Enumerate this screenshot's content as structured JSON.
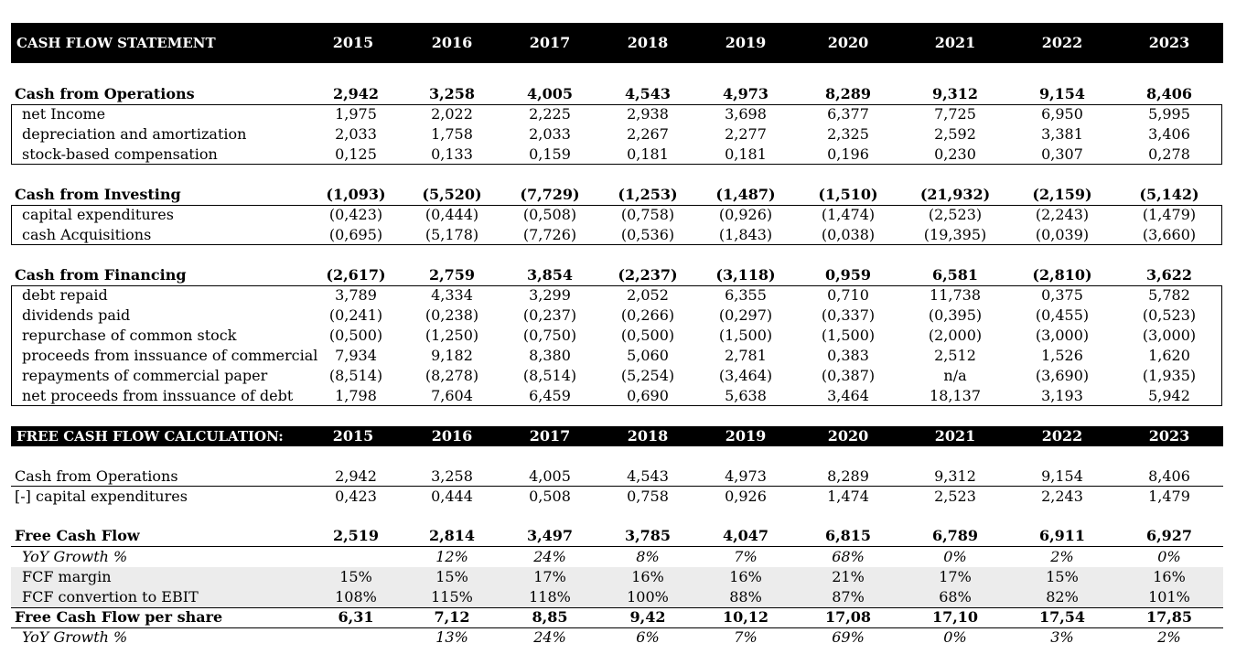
{
  "years": [
    "2015",
    "2016",
    "2017",
    "2018",
    "2019",
    "2020",
    "2021",
    "2022",
    "2023"
  ],
  "header1": "CASH FLOW STATEMENT",
  "header2": "FREE CASH FLOW CALCULATION:",
  "rows": [
    {
      "label": "Cash from Operations",
      "values": [
        "2,942",
        "3,258",
        "4,005",
        "4,543",
        "4,973",
        "8,289",
        "9,312",
        "9,154",
        "8,406"
      ]
    },
    {
      "label": "net Income",
      "values": [
        "1,975",
        "2,022",
        "2,225",
        "2,938",
        "3,698",
        "6,377",
        "7,725",
        "6,950",
        "5,995"
      ]
    },
    {
      "label": "depreciation and amortization",
      "values": [
        "2,033",
        "1,758",
        "2,033",
        "2,267",
        "2,277",
        "2,325",
        "2,592",
        "3,381",
        "3,406"
      ]
    },
    {
      "label": "stock-based compensation",
      "values": [
        "0,125",
        "0,133",
        "0,159",
        "0,181",
        "0,181",
        "0,196",
        "0,230",
        "0,307",
        "0,278"
      ]
    },
    {
      "label": "Cash from Investing",
      "values": [
        "(1,093)",
        "(5,520)",
        "(7,729)",
        "(1,253)",
        "(1,487)",
        "(1,510)",
        "(21,932)",
        "(2,159)",
        "(5,142)"
      ]
    },
    {
      "label": "capital expenditures",
      "values": [
        "(0,423)",
        "(0,444)",
        "(0,508)",
        "(0,758)",
        "(0,926)",
        "(1,474)",
        "(2,523)",
        "(2,243)",
        "(1,479)"
      ]
    },
    {
      "label": "cash Acquisitions",
      "values": [
        "(0,695)",
        "(5,178)",
        "(7,726)",
        "(0,536)",
        "(1,843)",
        "(0,038)",
        "(19,395)",
        "(0,039)",
        "(3,660)"
      ]
    },
    {
      "label": "Cash from Financing",
      "values": [
        "(2,617)",
        "2,759",
        "3,854",
        "(2,237)",
        "(3,118)",
        "0,959",
        "6,581",
        "(2,810)",
        "3,622"
      ]
    },
    {
      "label": "debt repaid",
      "values": [
        "3,789",
        "4,334",
        "3,299",
        "2,052",
        "6,355",
        "0,710",
        "11,738",
        "0,375",
        "5,782"
      ]
    },
    {
      "label": "dividends paid",
      "values": [
        "(0,241)",
        "(0,238)",
        "(0,237)",
        "(0,266)",
        "(0,297)",
        "(0,337)",
        "(0,395)",
        "(0,455)",
        "(0,523)"
      ]
    },
    {
      "label": "repurchase of common stock",
      "values": [
        "(0,500)",
        "(1,250)",
        "(0,750)",
        "(0,500)",
        "(1,500)",
        "(1,500)",
        "(2,000)",
        "(3,000)",
        "(3,000)"
      ]
    },
    {
      "label": "proceeds from inssuance of commercial",
      "values": [
        "7,934",
        "9,182",
        "8,380",
        "5,060",
        "2,781",
        "0,383",
        "2,512",
        "1,526",
        "1,620"
      ]
    },
    {
      "label": "repayments of commercial paper",
      "values": [
        "(8,514)",
        "(8,278)",
        "(8,514)",
        "(5,254)",
        "(3,464)",
        "(0,387)",
        "n/a",
        "(3,690)",
        "(1,935)"
      ]
    },
    {
      "label": "net proceeds from inssuance of debt",
      "values": [
        "1,798",
        "7,604",
        "6,459",
        "0,690",
        "5,638",
        "3,464",
        "18,137",
        "3,193",
        "5,942"
      ]
    },
    {
      "label": "Cash from Operations",
      "values": [
        "2,942",
        "3,258",
        "4,005",
        "4,543",
        "4,973",
        "8,289",
        "9,312",
        "9,154",
        "8,406"
      ]
    },
    {
      "label": "[-] capital expenditures",
      "values": [
        "0,423",
        "0,444",
        "0,508",
        "0,758",
        "0,926",
        "1,474",
        "2,523",
        "2,243",
        "1,479"
      ]
    },
    {
      "label": "Free Cash Flow",
      "values": [
        "2,519",
        "2,814",
        "3,497",
        "3,785",
        "4,047",
        "6,815",
        "6,789",
        "6,911",
        "6,927"
      ]
    },
    {
      "label": "YoY Growth %",
      "values": [
        "",
        "12%",
        "24%",
        "8%",
        "7%",
        "68%",
        "0%",
        "2%",
        "0%"
      ]
    },
    {
      "label": "FCF margin",
      "values": [
        "15%",
        "15%",
        "17%",
        "16%",
        "16%",
        "21%",
        "17%",
        "15%",
        "16%"
      ]
    },
    {
      "label": "FCF convertion to EBIT",
      "values": [
        "108%",
        "115%",
        "118%",
        "100%",
        "88%",
        "87%",
        "68%",
        "82%",
        "101%"
      ]
    },
    {
      "label": "Free Cash Flow per share",
      "values": [
        "6,31",
        "7,12",
        "8,85",
        "9,42",
        "10,12",
        "17,08",
        "17,10",
        "17,54",
        "17,85"
      ]
    },
    {
      "label": "YoY Growth %",
      "values": [
        "",
        "13%",
        "24%",
        "6%",
        "7%",
        "69%",
        "0%",
        "3%",
        "2%"
      ]
    }
  ]
}
